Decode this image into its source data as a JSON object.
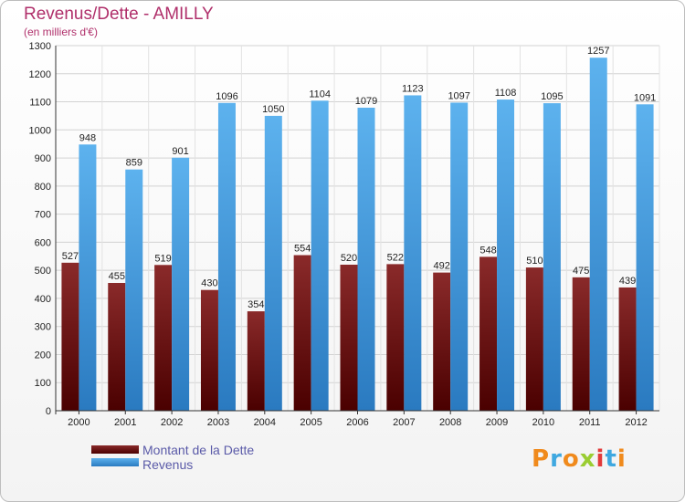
{
  "header": {
    "title": "Revenus/Dette - AMILLY",
    "subtitle": "(en milliers d'€)"
  },
  "chart_data": {
    "type": "bar",
    "categories": [
      "2000",
      "2001",
      "2002",
      "2003",
      "2004",
      "2005",
      "2006",
      "2007",
      "2008",
      "2009",
      "2010",
      "2011",
      "2012"
    ],
    "series": [
      {
        "name": "Montant de la Dette",
        "color": "#7a1a1a",
        "values": [
          527,
          455,
          519,
          430,
          354,
          554,
          520,
          522,
          492,
          548,
          510,
          475,
          439
        ]
      },
      {
        "name": "Revenus",
        "color": "#4ea6e6",
        "values": [
          948,
          859,
          901,
          1096,
          1050,
          1104,
          1079,
          1123,
          1097,
          1108,
          1095,
          1257,
          1091
        ]
      }
    ],
    "ylim": [
      0,
      1300
    ],
    "yticks": [
      0,
      100,
      200,
      300,
      400,
      500,
      600,
      700,
      800,
      900,
      1000,
      1100,
      1200,
      1300
    ],
    "grid": true,
    "legend_position": "bottom-left"
  },
  "legend": {
    "items": [
      {
        "label": "Montant de la Dette",
        "color": "#7a1a1a"
      },
      {
        "label": "Revenus",
        "color": "#4ea6e6"
      }
    ]
  },
  "logo": {
    "text": "Proxiti"
  }
}
